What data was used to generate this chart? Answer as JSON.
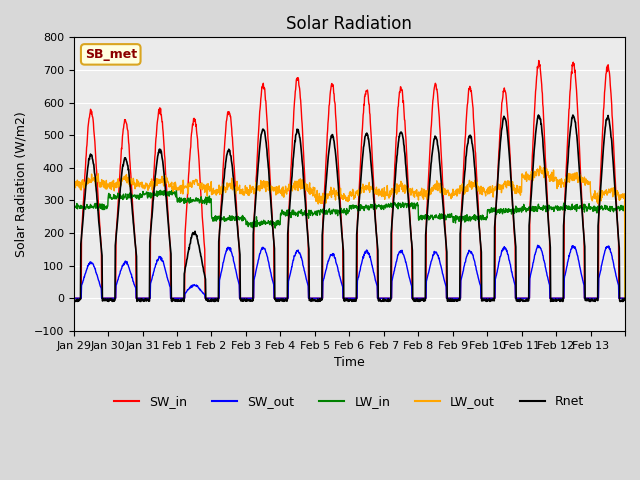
{
  "title": "Solar Radiation",
  "xlabel": "Time",
  "ylabel": "Solar Radiation (W/m2)",
  "ylim": [
    -100,
    800
  ],
  "annotation": "SB_met",
  "legend_entries": [
    "SW_in",
    "SW_out",
    "LW_in",
    "LW_out",
    "Rnet"
  ],
  "line_colors": [
    "red",
    "blue",
    "green",
    "orange",
    "black"
  ],
  "num_days": 16,
  "x_tick_labels": [
    "Jan 29",
    "Jan 30",
    "Jan 31",
    "Feb 1",
    "Feb 2",
    "Feb 3",
    "Feb 4",
    "Feb 5",
    "Feb 6",
    "Feb 7",
    "Feb 8",
    "Feb 9",
    "Feb 10",
    "Feb 11",
    "Feb 12",
    "Feb 13",
    ""
  ],
  "SW_in_peaks": [
    575,
    545,
    580,
    550,
    575,
    655,
    675,
    655,
    640,
    645,
    655,
    645,
    640,
    720,
    720,
    710
  ],
  "SW_out_peaks": [
    110,
    110,
    125,
    40,
    155,
    155,
    145,
    135,
    145,
    145,
    140,
    145,
    155,
    160,
    160,
    158
  ],
  "Rnet_peaks": [
    440,
    430,
    455,
    200,
    455,
    520,
    515,
    500,
    505,
    510,
    495,
    500,
    555,
    560,
    560,
    555
  ],
  "lw_in_day_vals": [
    280,
    310,
    320,
    300,
    245,
    230,
    260,
    265,
    280,
    285,
    250,
    245,
    270,
    275,
    278,
    275
  ],
  "lw_out_day_vals": [
    345,
    345,
    340,
    335,
    325,
    330,
    330,
    305,
    320,
    320,
    320,
    325,
    330,
    370,
    355,
    310
  ]
}
